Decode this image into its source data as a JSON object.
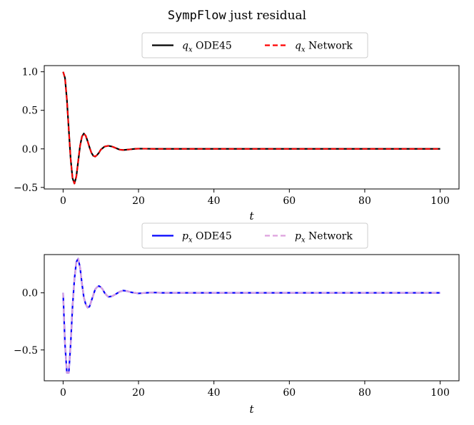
{
  "figure": {
    "title_code": "SympFlow",
    "title_rest": " just residual"
  },
  "chart_data": [
    {
      "type": "line",
      "xlabel": "t",
      "ylabel": "",
      "xlim": [
        -5,
        105
      ],
      "ylim": [
        -0.52,
        1.08
      ],
      "xticks": [
        0,
        20,
        40,
        60,
        80,
        100
      ],
      "yticks": [
        1.0,
        0.5,
        0.0,
        -0.5
      ],
      "ytick_labels": [
        "1.0",
        "0.5",
        "0.0",
        "−0.5"
      ],
      "legend_position": "top-center, outside above axes",
      "grid": false,
      "x": [
        0,
        0.5,
        1,
        1.5,
        2,
        2.5,
        3,
        3.5,
        4,
        4.5,
        5,
        5.5,
        6,
        6.5,
        7,
        7.5,
        8,
        8.5,
        9,
        9.5,
        10,
        11,
        12,
        13,
        14,
        15,
        16,
        17,
        18,
        19,
        20,
        22,
        24,
        26,
        30,
        40,
        60,
        80,
        100
      ],
      "series": [
        {
          "name": "q_x ODE45",
          "label_var": "q",
          "label_sub": "x",
          "label_rest": " ODE45",
          "color": "#000000",
          "dash": "solid",
          "values": [
            1.0,
            0.92,
            0.64,
            0.25,
            -0.13,
            -0.38,
            -0.45,
            -0.36,
            -0.16,
            0.04,
            0.16,
            0.2,
            0.17,
            0.1,
            0.02,
            -0.05,
            -0.09,
            -0.1,
            -0.08,
            -0.05,
            -0.01,
            0.03,
            0.04,
            0.03,
            0.01,
            -0.01,
            -0.015,
            -0.01,
            -0.005,
            0.0,
            0.003,
            0.002,
            0.0,
            0.0,
            0.0,
            0.0,
            0.0,
            0.0,
            0.0
          ]
        },
        {
          "name": "q_x Network",
          "label_var": "q",
          "label_sub": "x",
          "label_rest": " Network",
          "color": "#ff0000",
          "dash": "dashed",
          "values": [
            1.0,
            0.92,
            0.64,
            0.25,
            -0.13,
            -0.38,
            -0.45,
            -0.36,
            -0.16,
            0.04,
            0.16,
            0.2,
            0.17,
            0.1,
            0.02,
            -0.05,
            -0.09,
            -0.1,
            -0.08,
            -0.05,
            -0.01,
            0.03,
            0.04,
            0.03,
            0.01,
            -0.01,
            -0.015,
            -0.01,
            -0.005,
            0.0,
            0.003,
            0.002,
            0.0,
            0.0,
            0.0,
            0.0,
            0.0,
            0.0,
            0.0
          ]
        }
      ]
    },
    {
      "type": "line",
      "xlabel": "t",
      "ylabel": "",
      "xlim": [
        -5,
        105
      ],
      "ylim": [
        -0.77,
        0.335
      ],
      "xticks": [
        0,
        20,
        40,
        60,
        80,
        100
      ],
      "yticks": [
        0.0,
        -0.5
      ],
      "ytick_labels": [
        "0.0",
        "−0.5"
      ],
      "legend_position": "top-center, outside above axes",
      "grid": false,
      "x": [
        0,
        0.5,
        1,
        1.5,
        2,
        2.5,
        3,
        3.5,
        4,
        4.5,
        5,
        5.5,
        6,
        6.5,
        7,
        7.5,
        8,
        8.5,
        9,
        9.5,
        10,
        10.5,
        11,
        11.5,
        12,
        13,
        14,
        15,
        16,
        17,
        18,
        19,
        20,
        22,
        24,
        26,
        30,
        40,
        60,
        80,
        100
      ],
      "series": [
        {
          "name": "p_x ODE45",
          "label_var": "p",
          "label_sub": "x",
          "label_rest": " ODE45",
          "color": "#0000ff",
          "dash": "solid",
          "values": [
            0.0,
            -0.45,
            -0.7,
            -0.7,
            -0.45,
            -0.12,
            0.12,
            0.27,
            0.3,
            0.22,
            0.08,
            -0.04,
            -0.1,
            -0.13,
            -0.12,
            -0.07,
            -0.02,
            0.03,
            0.05,
            0.06,
            0.05,
            0.03,
            0.0,
            -0.02,
            -0.035,
            -0.03,
            -0.01,
            0.01,
            0.02,
            0.015,
            0.005,
            0.0,
            -0.005,
            0.0,
            0.003,
            0.0,
            0.0,
            0.0,
            0.0,
            0.0,
            0.0
          ]
        },
        {
          "name": "p_x Network",
          "label_var": "p",
          "label_sub": "x",
          "label_rest": " Network",
          "color": "#dda0dd",
          "dash": "dashed",
          "values": [
            0.0,
            -0.45,
            -0.7,
            -0.7,
            -0.45,
            -0.12,
            0.12,
            0.27,
            0.3,
            0.22,
            0.08,
            -0.04,
            -0.1,
            -0.13,
            -0.12,
            -0.07,
            -0.02,
            0.03,
            0.05,
            0.06,
            0.05,
            0.03,
            0.0,
            -0.02,
            -0.035,
            -0.03,
            -0.01,
            0.01,
            0.02,
            0.015,
            0.005,
            0.0,
            -0.005,
            0.0,
            0.003,
            0.0,
            0.0,
            0.0,
            0.0,
            0.0,
            0.0
          ]
        }
      ]
    }
  ]
}
